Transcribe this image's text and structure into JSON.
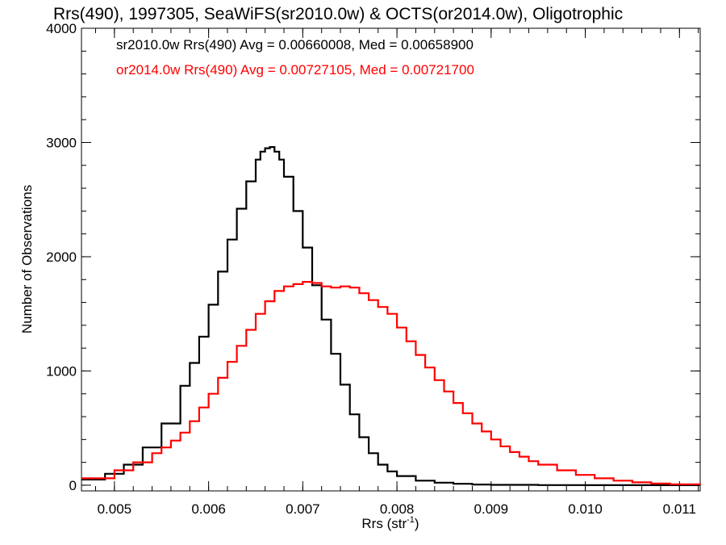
{
  "chart_data": {
    "type": "line",
    "title": "Rrs(490), 1997305, SeaWiFS(sr2010.0w) & OCTS(or2014.0w), Oligotrophic",
    "xlabel_main": "Rrs (str",
    "xlabel_sup": "-1",
    "xlabel_close": ")",
    "ylabel": "Number of Observations",
    "xlim": [
      0.00465,
      0.01122
    ],
    "ylim": [
      -50,
      4000
    ],
    "x_ticks": [
      0.005,
      0.006,
      0.007,
      0.008,
      0.009,
      0.01,
      0.011
    ],
    "x_tick_labels": [
      "0.005",
      "0.006",
      "0.007",
      "0.008",
      "0.009",
      "0.010",
      "0.011"
    ],
    "y_ticks": [
      0,
      1000,
      2000,
      3000,
      4000
    ],
    "y_tick_labels": [
      "0",
      "1000",
      "2000",
      "3000",
      "4000"
    ],
    "x_minor_step": 0.0002,
    "y_minor_step": 200,
    "series": [
      {
        "name": "sr2010.0w Rrs(490) Avg = 0.00660008, Med = 0.00658900",
        "color": "#000000",
        "x": [
          0.00465,
          0.0049,
          0.0051,
          0.0053,
          0.0055,
          0.0057,
          0.0058,
          0.0059,
          0.006,
          0.0061,
          0.0062,
          0.0063,
          0.0064,
          0.0065,
          0.00655,
          0.0066,
          0.00665,
          0.0067,
          0.00675,
          0.0068,
          0.0069,
          0.007,
          0.0071,
          0.0072,
          0.0073,
          0.0074,
          0.0075,
          0.0076,
          0.0077,
          0.0078,
          0.0079,
          0.008,
          0.0082,
          0.0084,
          0.0086,
          0.0088,
          0.009,
          0.0095,
          0.01,
          0.0105,
          0.01122
        ],
        "values": [
          50,
          100,
          180,
          330,
          540,
          870,
          1070,
          1300,
          1580,
          1870,
          2150,
          2420,
          2660,
          2850,
          2920,
          2950,
          2960,
          2920,
          2850,
          2700,
          2400,
          2080,
          1750,
          1450,
          1150,
          880,
          620,
          420,
          280,
          180,
          120,
          80,
          40,
          22,
          12,
          6,
          3,
          1,
          0,
          0,
          0
        ]
      },
      {
        "name": "or2014.0w Rrs(490) Avg = 0.00727105, Med = 0.00721700",
        "color": "#ff0000",
        "x": [
          0.00465,
          0.005,
          0.0052,
          0.0054,
          0.0055,
          0.0056,
          0.0057,
          0.0058,
          0.0059,
          0.006,
          0.0061,
          0.0062,
          0.0063,
          0.0064,
          0.0065,
          0.0066,
          0.0067,
          0.0068,
          0.0069,
          0.007,
          0.0071,
          0.0072,
          0.0073,
          0.0074,
          0.0075,
          0.0076,
          0.0077,
          0.0078,
          0.0079,
          0.008,
          0.0081,
          0.0082,
          0.0083,
          0.0084,
          0.0085,
          0.0086,
          0.0087,
          0.0088,
          0.0089,
          0.009,
          0.0091,
          0.0092,
          0.0093,
          0.0094,
          0.0095,
          0.0097,
          0.0099,
          0.0101,
          0.0103,
          0.0105,
          0.0107,
          0.0109,
          0.01122
        ],
        "values": [
          60,
          130,
          200,
          280,
          330,
          390,
          460,
          560,
          680,
          800,
          940,
          1080,
          1220,
          1360,
          1500,
          1610,
          1700,
          1740,
          1760,
          1780,
          1770,
          1740,
          1730,
          1740,
          1730,
          1680,
          1620,
          1560,
          1500,
          1380,
          1260,
          1140,
          1030,
          920,
          820,
          720,
          630,
          540,
          470,
          400,
          340,
          290,
          250,
          210,
          180,
          130,
          90,
          60,
          40,
          25,
          15,
          8,
          5
        ]
      }
    ]
  }
}
